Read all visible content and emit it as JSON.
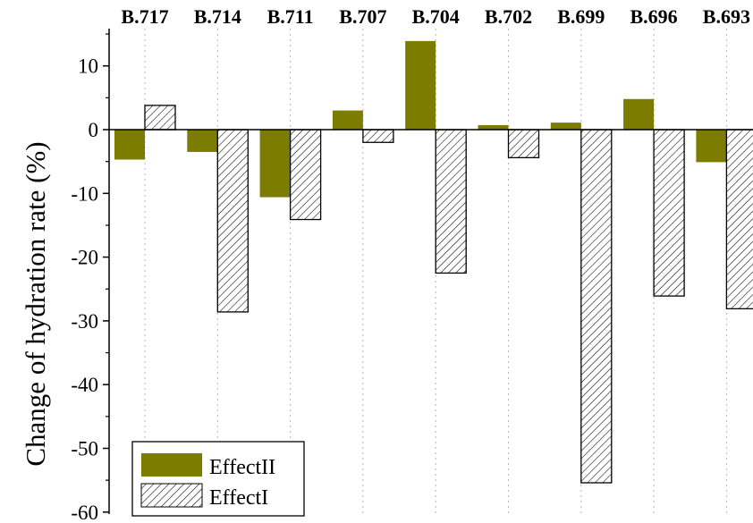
{
  "chart_data": {
    "type": "bar",
    "title": "",
    "xlabel": "",
    "ylabel": "Change of hydration rate (%)",
    "ylim": [
      -60,
      15
    ],
    "yticks": [
      10,
      0,
      -10,
      -20,
      -30,
      -40,
      -50,
      -60
    ],
    "categories": [
      "B.717",
      "B.714",
      "B.711",
      "B.707",
      "B.704",
      "B.702",
      "B.699",
      "B.696",
      "B.693"
    ],
    "category_axis_position": "top",
    "grid": "vertical dotted",
    "legend_position": "bottom-left",
    "series": [
      {
        "name": "EffectII",
        "color": "#7c7c00",
        "fill": "solid",
        "values": [
          -4.7,
          -3.5,
          -10.6,
          3.0,
          13.9,
          0.7,
          1.1,
          4.8,
          -5.1
        ]
      },
      {
        "name": "EffectI",
        "color": "#ffffff",
        "fill": "hatched",
        "values": [
          3.8,
          -28.6,
          -14.1,
          -2.0,
          -22.5,
          -4.4,
          -55.4,
          -26.1,
          -28.1
        ]
      }
    ]
  }
}
